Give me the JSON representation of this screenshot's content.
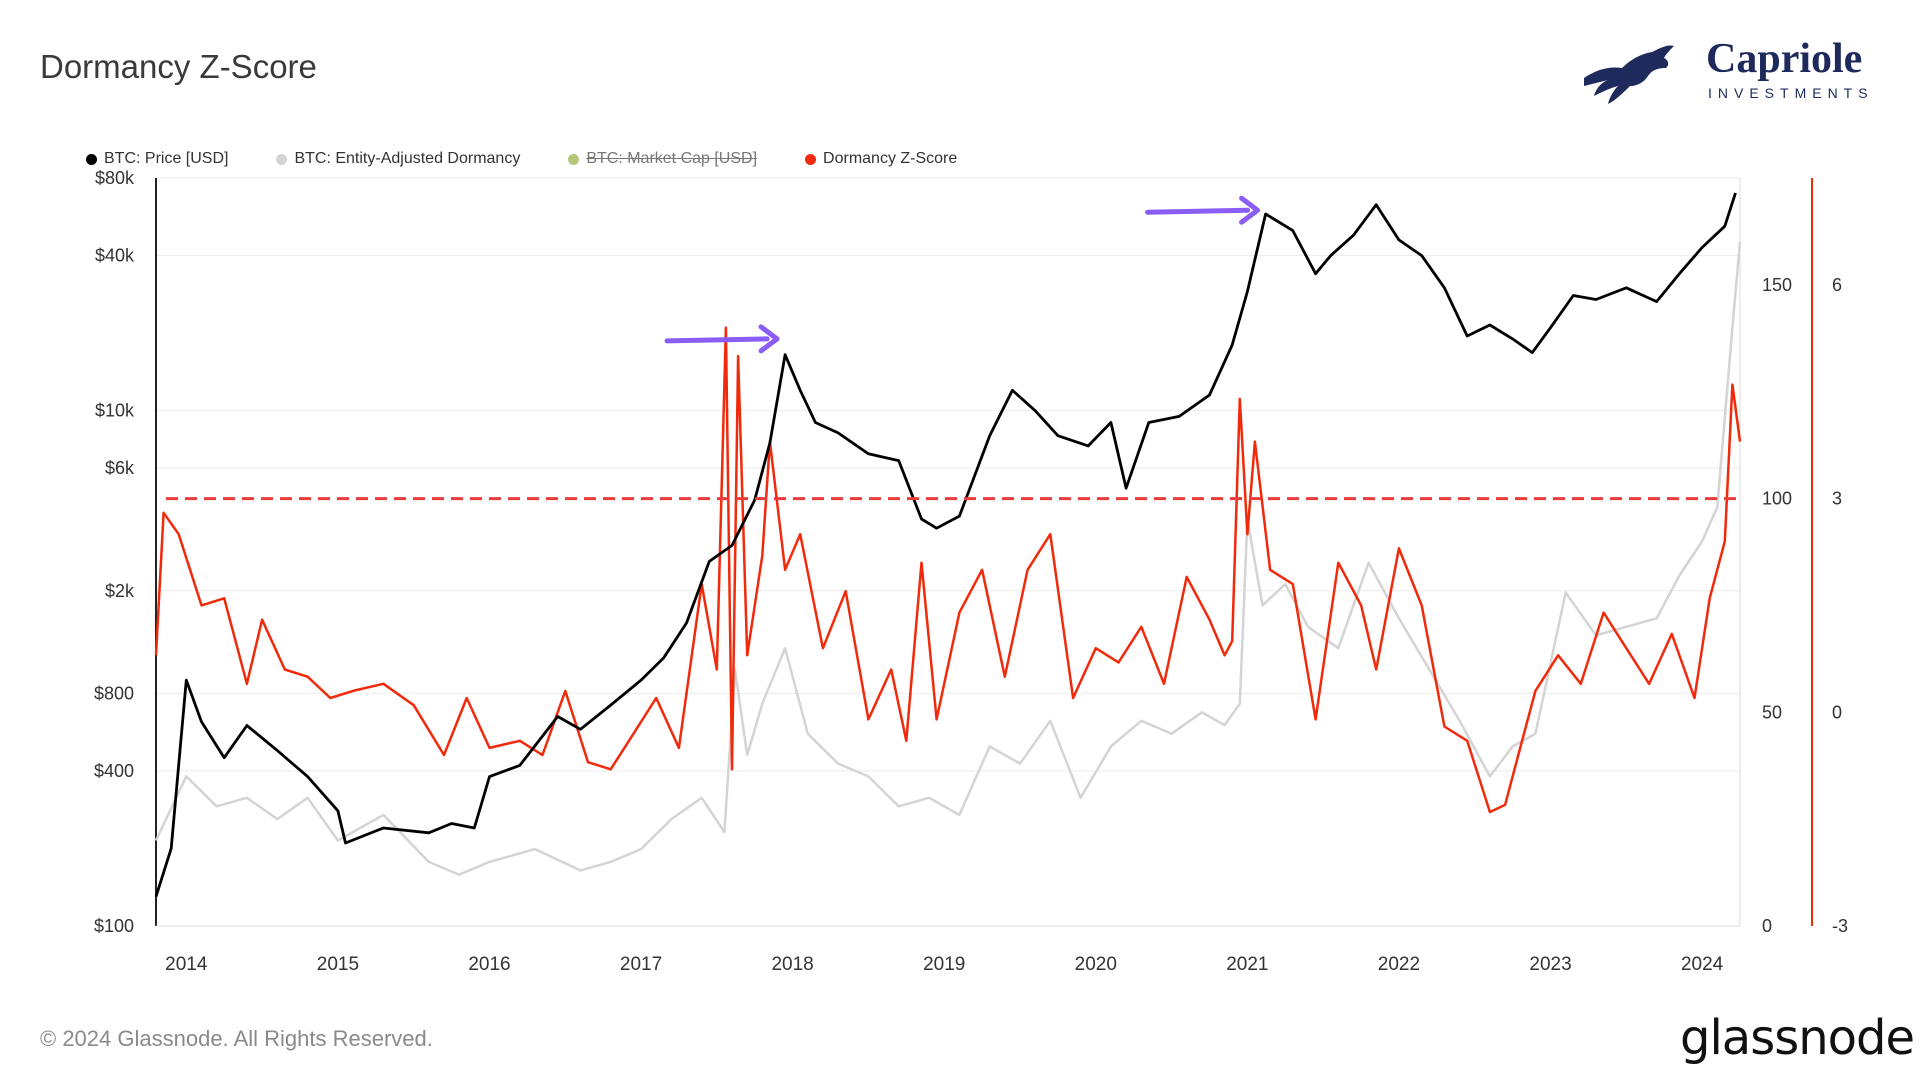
{
  "header": {
    "title": "Dormancy Z-Score"
  },
  "brand": {
    "name": "Capriole",
    "tagline": "INVESTMENTS"
  },
  "footer": {
    "copyright": "© 2024 Glassnode. All Rights Reserved.",
    "provider": "glassnode"
  },
  "colors": {
    "price": "#000000",
    "dormancy": "#d4d4d4",
    "market_cap": "#b5c77a",
    "zscore": "#f12a0c",
    "threshold": "#ea3c3c",
    "annotation_arrow": "#8b5cf6",
    "brand_navy": "#1e2a5c"
  },
  "chart_data": {
    "type": "line",
    "title": "Dormancy Z-Score",
    "legend": [
      {
        "name": "BTC: Price [USD]",
        "color": "#000000",
        "disabled": false
      },
      {
        "name": "BTC: Entity-Adjusted Dormancy",
        "color": "#d4d4d4",
        "disabled": false
      },
      {
        "name": "BTC: Market Cap [USD]",
        "color": "#b5c77a",
        "disabled": true
      },
      {
        "name": "Dormancy Z-Score",
        "color": "#f12a0c",
        "disabled": false
      }
    ],
    "legend_position": "top-left",
    "x_ticks": [
      "2014",
      "2015",
      "2016",
      "2017",
      "2018",
      "2019",
      "2020",
      "2021",
      "2022",
      "2023",
      "2024"
    ],
    "xlim": [
      2013.8,
      2024.25
    ],
    "y_left": {
      "scale": "log",
      "ylim": [
        100,
        80000
      ],
      "ticks": [
        100,
        400,
        800,
        2000,
        6000,
        10000,
        40000,
        80000
      ],
      "tick_labels": [
        "$100",
        "$400",
        "$800",
        "$2k",
        "$6k",
        "$10k",
        "$40k",
        "$80k"
      ]
    },
    "y_right_dormancy": {
      "ylim": [
        0,
        175
      ],
      "ticks": [
        0,
        50,
        100,
        150
      ],
      "tick_labels": [
        "0",
        "50",
        "100",
        "150"
      ]
    },
    "y_right_zscore": {
      "ylim": [
        -3,
        7.5
      ],
      "ticks": [
        -3,
        0,
        3,
        6
      ],
      "tick_labels": [
        "-3",
        "0",
        "3",
        "6"
      ]
    },
    "threshold_line": {
      "axis": "zscore",
      "value": 3,
      "style": "dashed"
    },
    "grid": "horizontal",
    "annotations": [
      {
        "type": "arrow",
        "label": "",
        "target_x": 2017.95,
        "target_price": 19000
      },
      {
        "type": "arrow",
        "label": "",
        "target_x": 2021.12,
        "target_price": 60000
      }
    ],
    "series": [
      {
        "name": "BTC: Price [USD]",
        "axis": "price",
        "x": [
          2013.8,
          2013.9,
          2014.0,
          2014.1,
          2014.25,
          2014.4,
          2014.6,
          2014.8,
          2015.0,
          2015.05,
          2015.3,
          2015.6,
          2015.75,
          2015.9,
          2016.0,
          2016.2,
          2016.45,
          2016.6,
          2016.8,
          2017.0,
          2017.15,
          2017.3,
          2017.45,
          2017.6,
          2017.75,
          2017.85,
          2017.95,
          2018.05,
          2018.15,
          2018.3,
          2018.5,
          2018.7,
          2018.85,
          2018.95,
          2019.1,
          2019.3,
          2019.45,
          2019.6,
          2019.75,
          2019.95,
          2020.1,
          2020.2,
          2020.35,
          2020.55,
          2020.75,
          2020.9,
          2021.0,
          2021.12,
          2021.3,
          2021.45,
          2021.55,
          2021.7,
          2021.85,
          2022.0,
          2022.15,
          2022.3,
          2022.45,
          2022.6,
          2022.75,
          2022.88,
          2023.0,
          2023.15,
          2023.3,
          2023.5,
          2023.7,
          2023.85,
          2024.0,
          2024.15,
          2024.22
        ],
        "values": [
          130,
          200,
          900,
          620,
          450,
          600,
          480,
          380,
          280,
          210,
          240,
          230,
          250,
          240,
          380,
          420,
          650,
          580,
          720,
          900,
          1100,
          1500,
          2600,
          3000,
          4500,
          7500,
          16500,
          12000,
          9000,
          8200,
          6800,
          6400,
          3800,
          3500,
          3900,
          8000,
          12000,
          10000,
          8000,
          7300,
          9000,
          5000,
          9000,
          9500,
          11500,
          18000,
          29000,
          58000,
          50000,
          34000,
          40000,
          48000,
          63000,
          46000,
          40000,
          30000,
          19500,
          21500,
          19000,
          16800,
          21000,
          28000,
          27000,
          30000,
          26500,
          34000,
          43000,
          52000,
          70000
        ]
      },
      {
        "name": "BTC: Entity-Adjusted Dormancy",
        "axis": "dormancy",
        "x": [
          2013.8,
          2014.0,
          2014.2,
          2014.4,
          2014.6,
          2014.8,
          2015.0,
          2015.3,
          2015.6,
          2015.8,
          2016.0,
          2016.3,
          2016.6,
          2016.8,
          2017.0,
          2017.2,
          2017.4,
          2017.55,
          2017.62,
          2017.7,
          2017.8,
          2017.95,
          2018.1,
          2018.3,
          2018.5,
          2018.7,
          2018.9,
          2019.1,
          2019.3,
          2019.5,
          2019.7,
          2019.9,
          2020.1,
          2020.3,
          2020.5,
          2020.7,
          2020.85,
          2020.95,
          2021.0,
          2021.1,
          2021.25,
          2021.4,
          2021.6,
          2021.8,
          2022.0,
          2022.2,
          2022.4,
          2022.6,
          2022.75,
          2022.9,
          2023.1,
          2023.3,
          2023.5,
          2023.7,
          2023.85,
          2024.0,
          2024.1,
          2024.2,
          2024.25
        ],
        "values": [
          20,
          35,
          28,
          30,
          25,
          30,
          20,
          26,
          15,
          12,
          15,
          18,
          13,
          15,
          18,
          25,
          30,
          22,
          60,
          40,
          52,
          65,
          45,
          38,
          35,
          28,
          30,
          26,
          42,
          38,
          48,
          30,
          42,
          48,
          45,
          50,
          47,
          52,
          95,
          75,
          80,
          70,
          65,
          85,
          72,
          60,
          48,
          35,
          42,
          45,
          78,
          68,
          70,
          72,
          82,
          90,
          98,
          140,
          160
        ]
      },
      {
        "name": "Dormancy Z-Score",
        "axis": "zscore",
        "x": [
          2013.8,
          2013.85,
          2013.95,
          2014.1,
          2014.25,
          2014.4,
          2014.5,
          2014.65,
          2014.8,
          2014.95,
          2015.1,
          2015.3,
          2015.5,
          2015.7,
          2015.85,
          2016.0,
          2016.2,
          2016.35,
          2016.5,
          2016.65,
          2016.8,
          2016.95,
          2017.1,
          2017.25,
          2017.4,
          2017.5,
          2017.56,
          2017.6,
          2017.64,
          2017.7,
          2017.8,
          2017.85,
          2017.95,
          2018.05,
          2018.2,
          2018.35,
          2018.5,
          2018.65,
          2018.75,
          2018.85,
          2018.95,
          2019.1,
          2019.25,
          2019.4,
          2019.55,
          2019.7,
          2019.85,
          2020.0,
          2020.15,
          2020.3,
          2020.45,
          2020.6,
          2020.75,
          2020.85,
          2020.9,
          2020.95,
          2021.0,
          2021.05,
          2021.15,
          2021.3,
          2021.45,
          2021.6,
          2021.75,
          2021.85,
          2022.0,
          2022.15,
          2022.3,
          2022.45,
          2022.6,
          2022.7,
          2022.8,
          2022.9,
          2023.05,
          2023.2,
          2023.35,
          2023.5,
          2023.65,
          2023.8,
          2023.95,
          2024.05,
          2024.15,
          2024.2,
          2024.25
        ],
        "values": [
          0.8,
          2.8,
          2.5,
          1.5,
          1.6,
          0.4,
          1.3,
          0.6,
          0.5,
          0.2,
          0.3,
          0.4,
          0.1,
          -0.6,
          0.2,
          -0.5,
          -0.4,
          -0.6,
          0.3,
          -0.7,
          -0.8,
          -0.3,
          0.2,
          -0.5,
          1.8,
          0.6,
          5.4,
          -0.8,
          5.0,
          0.8,
          2.2,
          3.8,
          2.0,
          2.5,
          0.9,
          1.7,
          -0.1,
          0.6,
          -0.4,
          2.1,
          -0.1,
          1.4,
          2.0,
          0.5,
          2.0,
          2.5,
          0.2,
          0.9,
          0.7,
          1.2,
          0.4,
          1.9,
          1.3,
          0.8,
          1.0,
          4.4,
          2.5,
          3.8,
          2.0,
          1.8,
          -0.1,
          2.1,
          1.5,
          0.6,
          2.3,
          1.5,
          -0.2,
          -0.4,
          -1.4,
          -1.3,
          -0.5,
          0.3,
          0.8,
          0.4,
          1.4,
          0.9,
          0.4,
          1.1,
          0.2,
          1.6,
          2.4,
          4.6,
          3.8
        ]
      }
    ]
  }
}
